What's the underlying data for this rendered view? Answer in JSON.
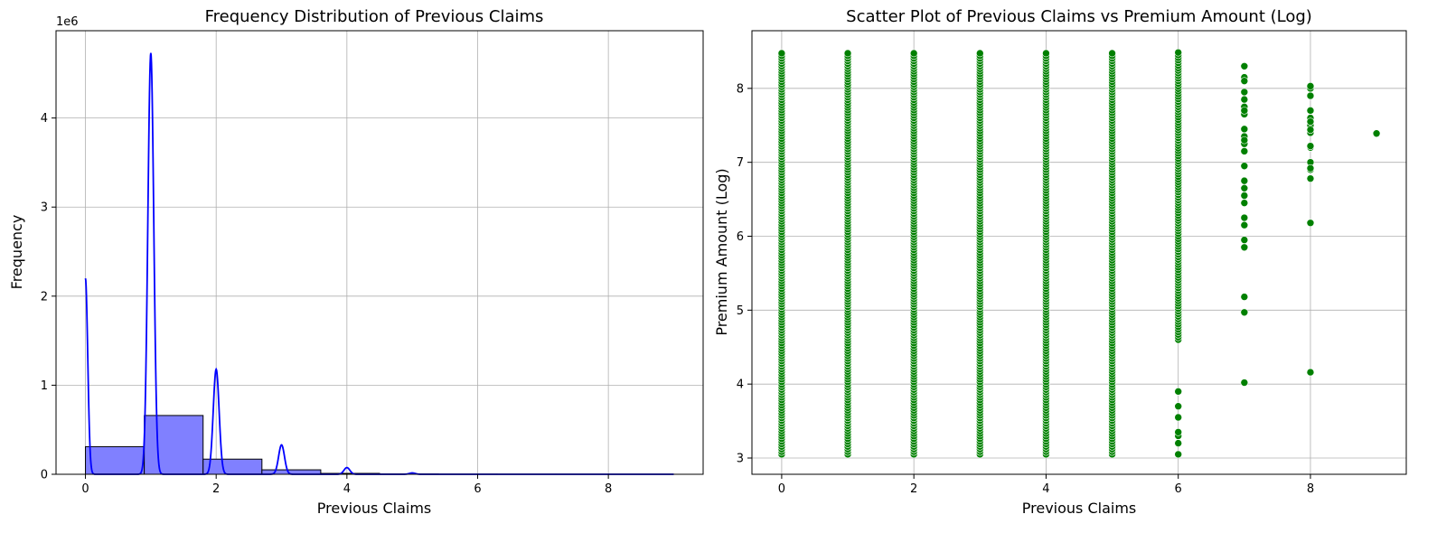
{
  "chart_data": [
    {
      "type": "bar",
      "title": "Frequency Distribution of Previous Claims",
      "xlabel": "Previous Claims",
      "ylabel": "Frequency",
      "y_offset_text": "1e6",
      "xlim": [
        -0.45,
        9.45
      ],
      "ylim": [
        0,
        4.98
      ],
      "grid": true,
      "bar_color": "#8080ff",
      "bar_edge_color": "#000000",
      "line_color": "#0000ff",
      "xticks": [
        0,
        2,
        4,
        6,
        8
      ],
      "xtick_labels": [
        "0",
        "2",
        "4",
        "6",
        "8"
      ],
      "yticks": [
        0,
        1,
        2,
        3,
        4
      ],
      "ytick_labels": [
        "0",
        "1",
        "2",
        "3",
        "4"
      ],
      "bin_edges": [
        0,
        0.9,
        1.8,
        2.7,
        3.6,
        4.5,
        5.4,
        6.3,
        7.2,
        8.1,
        9.0
      ],
      "bin_values": [
        0.31,
        0.66,
        0.17,
        0.05,
        0.01,
        0.003,
        0.001,
        0.0003,
        0.0002,
        0.0001
      ],
      "kde_peaks": [
        {
          "x": 0,
          "y": 2.2
        },
        {
          "x": 1,
          "y": 4.73
        },
        {
          "x": 2,
          "y": 1.18
        },
        {
          "x": 3,
          "y": 0.33
        },
        {
          "x": 4,
          "y": 0.075
        },
        {
          "x": 5,
          "y": 0.015
        }
      ]
    },
    {
      "type": "scatter",
      "title": "Scatter Plot of Previous Claims vs Premium Amount (Log)",
      "xlabel": "Previous Claims",
      "ylabel": "Premium Amount (Log)",
      "xlim": [
        -0.45,
        9.45
      ],
      "ylim": [
        2.78,
        8.78
      ],
      "grid": true,
      "point_color": "#008000",
      "xticks": [
        0,
        2,
        4,
        6,
        8
      ],
      "xtick_labels": [
        "0",
        "2",
        "4",
        "6",
        "8"
      ],
      "yticks": [
        3,
        4,
        5,
        6,
        7,
        8
      ],
      "ytick_labels": [
        "3",
        "4",
        "5",
        "6",
        "7",
        "8"
      ],
      "columns": [
        {
          "x": 0,
          "ymin": 3.05,
          "ymax": 8.5,
          "dense": true
        },
        {
          "x": 1,
          "ymin": 3.05,
          "ymax": 8.5,
          "dense": true
        },
        {
          "x": 2,
          "ymin": 3.05,
          "ymax": 8.5,
          "dense": true
        },
        {
          "x": 3,
          "ymin": 3.05,
          "ymax": 8.5,
          "dense": true
        },
        {
          "x": 4,
          "ymin": 3.05,
          "ymax": 8.5,
          "dense": true
        },
        {
          "x": 5,
          "ymin": 3.05,
          "ymax": 8.5,
          "dense": true
        },
        {
          "x": 6,
          "ymin": 4.6,
          "ymax": 8.5,
          "dense": true
        },
        {
          "x": 7,
          "ymin": 5.85,
          "ymax": 8.3,
          "dense": false
        },
        {
          "x": 8,
          "ymin": 6.8,
          "ymax": 8.0,
          "dense": false
        }
      ],
      "points": [
        {
          "x": 6,
          "y": 3.05
        },
        {
          "x": 6,
          "y": 3.2
        },
        {
          "x": 6,
          "y": 3.3
        },
        {
          "x": 6,
          "y": 3.35
        },
        {
          "x": 6,
          "y": 3.55
        },
        {
          "x": 6,
          "y": 3.7
        },
        {
          "x": 6,
          "y": 3.9
        },
        {
          "x": 7,
          "y": 4.02
        },
        {
          "x": 7,
          "y": 4.97
        },
        {
          "x": 7,
          "y": 5.18
        },
        {
          "x": 7,
          "y": 5.85
        },
        {
          "x": 7,
          "y": 6.25
        },
        {
          "x": 7,
          "y": 6.55
        },
        {
          "x": 7,
          "y": 7.3
        },
        {
          "x": 7,
          "y": 7.7
        },
        {
          "x": 7,
          "y": 8.1
        },
        {
          "x": 7,
          "y": 8.3
        },
        {
          "x": 8,
          "y": 4.16
        },
        {
          "x": 8,
          "y": 6.18
        },
        {
          "x": 8,
          "y": 6.78
        },
        {
          "x": 8,
          "y": 6.92
        },
        {
          "x": 8,
          "y": 7.22
        },
        {
          "x": 8,
          "y": 7.44
        },
        {
          "x": 8,
          "y": 7.55
        },
        {
          "x": 8,
          "y": 8.03
        },
        {
          "x": 9,
          "y": 7.39
        }
      ]
    }
  ]
}
